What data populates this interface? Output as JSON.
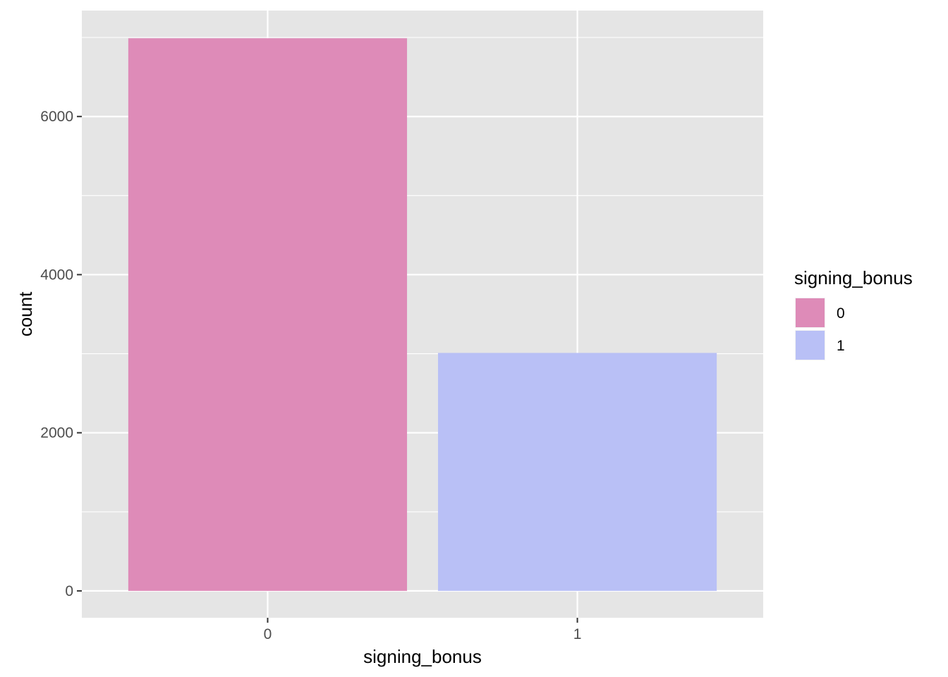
{
  "chart_data": {
    "type": "bar",
    "categories": [
      "0",
      "1"
    ],
    "values": [
      6990,
      3010
    ],
    "colors": [
      "#de8bb8",
      "#b9c0f6"
    ],
    "xlabel": "signing_bonus",
    "ylabel": "count",
    "ylim": [
      -340,
      7340
    ],
    "yticks": [
      0,
      2000,
      4000,
      6000
    ],
    "ytick_labels": [
      "0",
      "2000",
      "4000",
      "6000"
    ],
    "grid": true,
    "panel_background": "#e5e5e5",
    "legend": {
      "title": "signing_bonus",
      "placement": "right",
      "entries": [
        {
          "label": "0",
          "color": "#de8bb8"
        },
        {
          "label": "1",
          "color": "#b9c0f6"
        }
      ]
    }
  }
}
